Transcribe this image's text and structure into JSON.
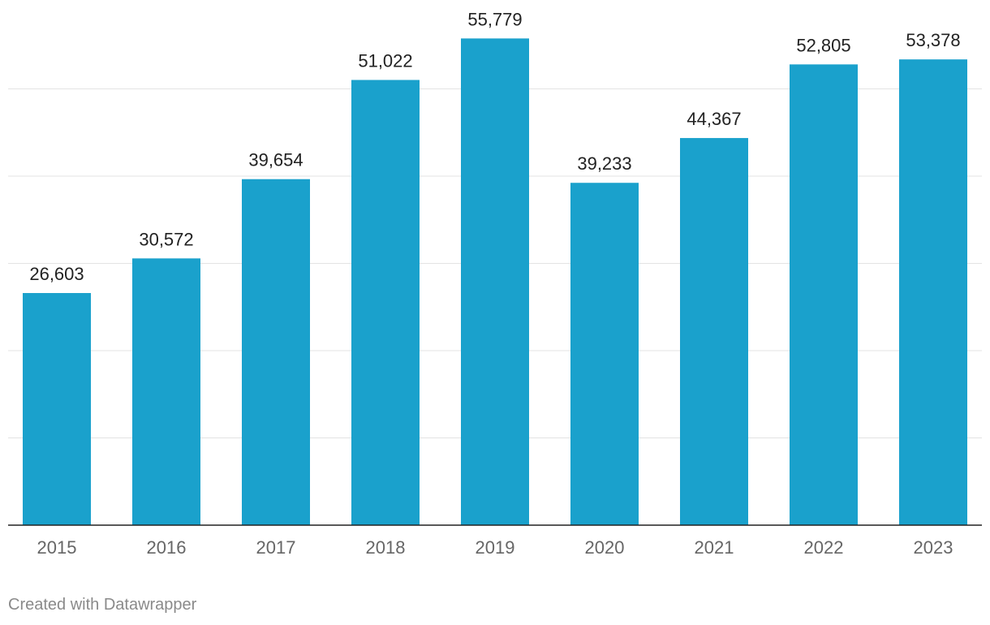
{
  "chart_data": {
    "type": "bar",
    "categories": [
      "2015",
      "2016",
      "2017",
      "2018",
      "2019",
      "2020",
      "2021",
      "2022",
      "2023"
    ],
    "values": [
      26603,
      30572,
      39654,
      51022,
      55779,
      39233,
      44367,
      52805,
      53378
    ],
    "value_labels": [
      "26,603",
      "30,572",
      "39,654",
      "51,022",
      "55,779",
      "39,233",
      "44,367",
      "52,805",
      "53,378"
    ],
    "title": "",
    "xlabel": "",
    "ylabel": "",
    "ylim": [
      0,
      60000
    ],
    "gridlines": [
      10000,
      20000,
      30000,
      40000,
      50000
    ],
    "grid": true,
    "bar_color": "#1aa1cc",
    "y_tick_labels_shown": false
  },
  "footer": {
    "credit": "Created with Datawrapper"
  }
}
